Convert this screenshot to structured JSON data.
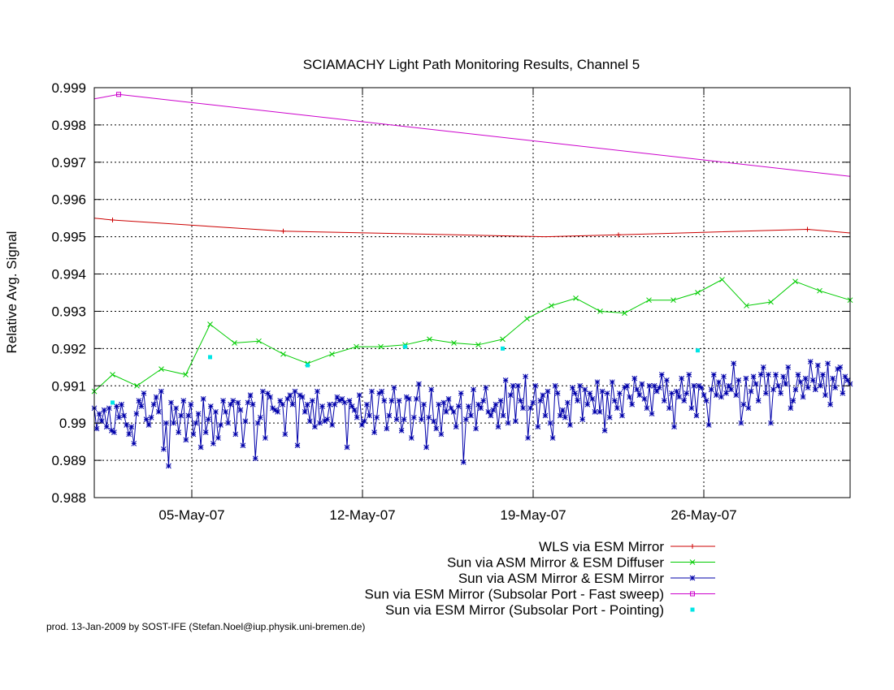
{
  "footer": "prod. 13-Jan-2009 by SOST-IFE (Stefan.Noel@iup.physik.uni-bremen.de)",
  "chart_data": {
    "type": "line",
    "title": "SCIAMACHY Light Path Monitoring Results, Channel 5",
    "xlabel": "",
    "ylabel": "Relative Avg. Signal",
    "xlim": [
      "2007-05-01T00:00",
      "2007-06-01T00:00"
    ],
    "ylim": [
      0.988,
      0.999
    ],
    "grid": true,
    "legend_position": "bottom-right",
    "x_ticks": [
      {
        "date": "2007-05-05",
        "label": "05-May-07"
      },
      {
        "date": "2007-05-12",
        "label": "12-May-07"
      },
      {
        "date": "2007-05-19",
        "label": "19-May-07"
      },
      {
        "date": "2007-05-26",
        "label": "26-May-07"
      }
    ],
    "y_ticks": [
      {
        "value": 0.988,
        "label": "0.988"
      },
      {
        "value": 0.989,
        "label": "0.989"
      },
      {
        "value": 0.99,
        "label": "0.99"
      },
      {
        "value": 0.991,
        "label": "0.991"
      },
      {
        "value": 0.992,
        "label": "0.992"
      },
      {
        "value": 0.993,
        "label": "0.993"
      },
      {
        "value": 0.994,
        "label": "0.994"
      },
      {
        "value": 0.995,
        "label": "0.995"
      },
      {
        "value": 0.996,
        "label": "0.996"
      },
      {
        "value": 0.997,
        "label": "0.997"
      },
      {
        "value": 0.998,
        "label": "0.998"
      },
      {
        "value": 0.999,
        "label": "0.999"
      }
    ],
    "series": [
      {
        "name": "WLS via ESM Mirror",
        "color": "#cc0000",
        "marker": "plus",
        "line": true,
        "x": [
          "2007-05-01",
          "2007-05-01T18:00",
          "2007-05-08T18:00",
          "2007-05-19T12:00",
          "2007-05-22T12:00",
          "2007-05-30T06:00",
          "2007-06-01"
        ],
        "y": [
          0.9955,
          0.99545,
          0.99515,
          0.995,
          0.99505,
          0.9952,
          0.9951
        ],
        "markers_x": [
          "2007-05-01T18:00",
          "2007-05-08T18:00",
          "2007-05-22T12:00",
          "2007-05-30T06:00"
        ],
        "markers_y": [
          0.99545,
          0.99515,
          0.99505,
          0.9952
        ]
      },
      {
        "name": "Sun via ASM Mirror & ESM Diffuser",
        "color": "#00cc00",
        "marker": "cross",
        "line": true,
        "x": [
          "2007-05-01",
          "2007-05-01T18:00",
          "2007-05-02T18:00",
          "2007-05-03T18:00",
          "2007-05-04T18:00",
          "2007-05-05T18:00",
          "2007-05-06T18:00",
          "2007-05-07T18:00",
          "2007-05-08T18:00",
          "2007-05-09T18:00",
          "2007-05-10T18:00",
          "2007-05-11T18:00",
          "2007-05-12T18:00",
          "2007-05-13T18:00",
          "2007-05-14T18:00",
          "2007-05-15T18:00",
          "2007-05-16T18:00",
          "2007-05-17T18:00",
          "2007-05-18T18:00",
          "2007-05-19T18:00",
          "2007-05-20T18:00",
          "2007-05-21T18:00",
          "2007-05-22T18:00",
          "2007-05-23T18:00",
          "2007-05-24T18:00",
          "2007-05-25T18:00",
          "2007-05-26T18:00",
          "2007-05-27T18:00",
          "2007-05-28T18:00",
          "2007-05-29T18:00",
          "2007-05-30T18:00",
          "2007-06-01"
        ],
        "y": [
          0.99085,
          0.9913,
          0.991,
          0.99145,
          0.9913,
          0.99265,
          0.99215,
          0.9922,
          0.99185,
          0.9916,
          0.99185,
          0.99205,
          0.99205,
          0.9921,
          0.99225,
          0.99215,
          0.9921,
          0.99225,
          0.9928,
          0.99315,
          0.99335,
          0.993,
          0.99295,
          0.9933,
          0.9933,
          0.9935,
          0.99385,
          0.99315,
          0.99325,
          0.9938,
          0.99355,
          0.9933
        ]
      },
      {
        "name": "Sun via ASM Mirror & ESM Mirror",
        "color": "#0000aa",
        "marker": "star",
        "line": true,
        "x_start": "2007-05-01T00:00",
        "x_end": "2007-06-01T00:00",
        "y": [
          0.9904,
          0.98985,
          0.99025,
          0.99005,
          0.99035,
          0.9899,
          0.9904,
          0.9898,
          0.98975,
          0.99045,
          0.99015,
          0.9905,
          0.9902,
          0.98995,
          0.9897,
          0.9899,
          0.98945,
          0.99025,
          0.9906,
          0.99045,
          0.9908,
          0.9901,
          0.98995,
          0.99015,
          0.9905,
          0.9907,
          0.9903,
          0.99085,
          0.9893,
          0.99,
          0.98885,
          0.99055,
          0.99,
          0.9904,
          0.98975,
          0.9902,
          0.9906,
          0.98955,
          0.9902,
          0.9905,
          0.9897,
          0.99,
          0.99025,
          0.98935,
          0.99065,
          0.98975,
          0.9901,
          0.99045,
          0.98945,
          0.9903,
          0.9896,
          0.98995,
          0.9906,
          0.9903,
          0.99,
          0.9905,
          0.9906,
          0.9897,
          0.99055,
          0.99035,
          0.9894,
          0.99005,
          0.99055,
          0.99075,
          0.9905,
          0.98905,
          0.99,
          0.99015,
          0.99085,
          0.9896,
          0.9908,
          0.9907,
          0.9904,
          0.99035,
          0.9903,
          0.9906,
          0.9905,
          0.9897,
          0.99065,
          0.99075,
          0.9905,
          0.99085,
          0.9894,
          0.99075,
          0.9907,
          0.9903,
          0.9905,
          0.99005,
          0.9906,
          0.9899,
          0.99085,
          0.99,
          0.99045,
          0.99005,
          0.9901,
          0.9905,
          0.98995,
          0.9905,
          0.9907,
          0.9906,
          0.99065,
          0.99055,
          0.98935,
          0.9906,
          0.99045,
          0.99035,
          0.99015,
          0.99075,
          0.98995,
          0.99005,
          0.9905,
          0.9902,
          0.99085,
          0.98975,
          0.99015,
          0.9908,
          0.99085,
          0.9906,
          0.98985,
          0.9902,
          0.9906,
          0.99095,
          0.9901,
          0.9906,
          0.9898,
          0.9901,
          0.9907,
          0.99065,
          0.9896,
          0.99015,
          0.99065,
          0.99105,
          0.9901,
          0.9905,
          0.98935,
          0.99015,
          0.9909,
          0.99005,
          0.98985,
          0.9905,
          0.9897,
          0.99055,
          0.9903,
          0.99065,
          0.9904,
          0.9903,
          0.9899,
          0.99045,
          0.9908,
          0.98895,
          0.9901,
          0.99045,
          0.9902,
          0.9909,
          0.98985,
          0.9905,
          0.9904,
          0.9906,
          0.99095,
          0.9903,
          0.9902,
          0.99035,
          0.9905,
          0.9899,
          0.9906,
          0.9902,
          0.99115,
          0.99,
          0.99075,
          0.991,
          0.99005,
          0.991,
          0.9906,
          0.9904,
          0.99125,
          0.9896,
          0.9904,
          0.99055,
          0.991,
          0.9899,
          0.9906,
          0.99075,
          0.9902,
          0.99085,
          0.99,
          0.9896,
          0.991,
          0.9908,
          0.9902,
          0.99035,
          0.99015,
          0.99055,
          0.98995,
          0.99095,
          0.9908,
          0.9906,
          0.991,
          0.9901,
          0.9909,
          0.9905,
          0.9908,
          0.99065,
          0.9903,
          0.9911,
          0.9903,
          0.99085,
          0.9898,
          0.9908,
          0.99015,
          0.9911,
          0.9906,
          0.9904,
          0.9908,
          0.9902,
          0.99095,
          0.991,
          0.9907,
          0.9905,
          0.9912,
          0.9909,
          0.99075,
          0.99105,
          0.99065,
          0.9904,
          0.991,
          0.99025,
          0.991,
          0.99085,
          0.99095,
          0.9913,
          0.9906,
          0.99115,
          0.9904,
          0.9908,
          0.9899,
          0.99085,
          0.9907,
          0.9912,
          0.9906,
          0.9908,
          0.9913,
          0.9904,
          0.991,
          0.9902,
          0.991,
          0.99095,
          0.99075,
          0.9906,
          0.98995,
          0.9909,
          0.9913,
          0.99075,
          0.9911,
          0.9907,
          0.99125,
          0.9908,
          0.991,
          0.9909,
          0.9916,
          0.99075,
          0.99115,
          0.99,
          0.9905,
          0.9912,
          0.9904,
          0.99085,
          0.99125,
          0.99105,
          0.9906,
          0.9913,
          0.9915,
          0.9908,
          0.9913,
          0.99,
          0.9909,
          0.9913,
          0.991,
          0.9908,
          0.99125,
          0.99105,
          0.9915,
          0.9904,
          0.9906,
          0.9909,
          0.9913,
          0.9911,
          0.9907,
          0.9912,
          0.99095,
          0.99165,
          0.99115,
          0.9909,
          0.99155,
          0.991,
          0.9913,
          0.99075,
          0.9916,
          0.9905,
          0.9912,
          0.99095,
          0.99145,
          0.9915,
          0.9908,
          0.99125,
          0.99115,
          0.99105
        ]
      },
      {
        "name": "Sun via ESM Mirror (Subsolar Port - Fast sweep)",
        "color": "#cc00cc",
        "marker": "square",
        "line": true,
        "x": [
          "2007-05-01",
          "2007-05-02",
          "2007-06-01"
        ],
        "y": [
          0.9987,
          0.99882,
          0.99662
        ],
        "markers_x": [
          "2007-05-02"
        ],
        "markers_y": [
          0.99882
        ]
      },
      {
        "name": "Sun via ESM Mirror (Subsolar Port - Pointing)",
        "color": "#00e5e5",
        "marker": "dot",
        "line": false,
        "x": [
          "2007-05-01T18:00",
          "2007-05-05T18:00",
          "2007-05-09T18:00",
          "2007-05-13T18:00",
          "2007-05-17T18:00",
          "2007-05-25T18:00"
        ],
        "y": [
          0.99055,
          0.99177,
          0.99155,
          0.99205,
          0.992,
          0.99195
        ]
      }
    ]
  }
}
